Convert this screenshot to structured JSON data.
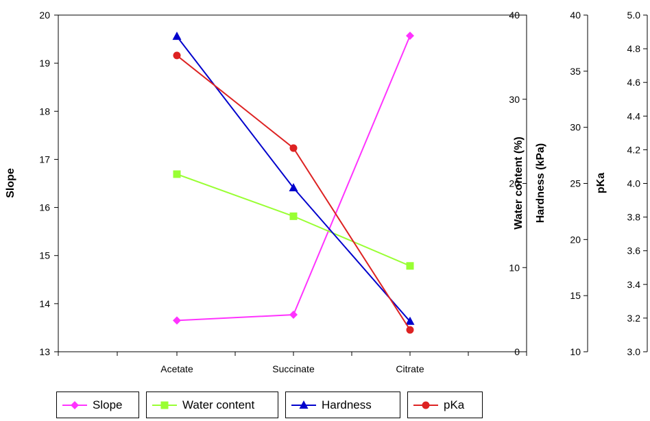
{
  "chart_data": {
    "type": "line",
    "categories": [
      "Acetate",
      "Succinate",
      "Citrate"
    ],
    "series": [
      {
        "name": "Slope",
        "axis": "slope",
        "color": "#ff33ff",
        "marker": "diamond",
        "values": [
          13.65,
          13.77,
          19.57
        ]
      },
      {
        "name": "Water content",
        "axis": "water",
        "color": "#99ff33",
        "marker": "square",
        "values": [
          21.1,
          16.1,
          10.2
        ]
      },
      {
        "name": "Hardness",
        "axis": "hardness",
        "color": "#0000cc",
        "marker": "triangle",
        "values": [
          38.1,
          24.6,
          12.7
        ]
      },
      {
        "name": "pKa",
        "axis": "pka",
        "color": "#dd2222",
        "marker": "circle",
        "values": [
          4.76,
          4.21,
          3.13
        ]
      }
    ],
    "axes": {
      "slope": {
        "title": "Slope",
        "min": 13,
        "max": 20,
        "ticks": [
          "13",
          "14",
          "15",
          "16",
          "17",
          "18",
          "19",
          "20"
        ]
      },
      "water": {
        "title": "Water content (%)",
        "min": 0,
        "max": 40,
        "ticks": [
          "0",
          "10",
          "20",
          "30",
          "40"
        ]
      },
      "hardness": {
        "title": "Hardness (kPa)",
        "min": 10,
        "max": 40,
        "ticks": [
          "10",
          "15",
          "20",
          "25",
          "30",
          "35",
          "40"
        ]
      },
      "pka": {
        "title": "pKa",
        "min": 3.0,
        "max": 5.0,
        "ticks": [
          "3.0",
          "3.2",
          "3.4",
          "3.6",
          "3.8",
          "4.0",
          "4.2",
          "4.4",
          "4.6",
          "4.8",
          "5.0"
        ]
      }
    },
    "legend_placement": "bottom",
    "grid": false
  }
}
